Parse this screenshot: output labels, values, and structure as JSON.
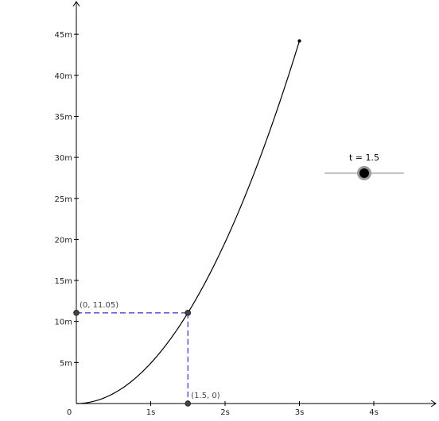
{
  "chart_data": {
    "type": "line",
    "title": "",
    "xlabel": "",
    "ylabel": "",
    "x_ticks": [
      {
        "value": 0,
        "label": "0"
      },
      {
        "value": 1,
        "label": "1s"
      },
      {
        "value": 2,
        "label": "2s"
      },
      {
        "value": 3,
        "label": "3s"
      },
      {
        "value": 4,
        "label": "4s"
      }
    ],
    "y_ticks": [
      {
        "value": 5,
        "label": "5m"
      },
      {
        "value": 10,
        "label": "10m"
      },
      {
        "value": 15,
        "label": "15m"
      },
      {
        "value": 20,
        "label": "20m"
      },
      {
        "value": 25,
        "label": "25m"
      },
      {
        "value": 30,
        "label": "30m"
      },
      {
        "value": 35,
        "label": "35m"
      },
      {
        "value": 40,
        "label": "40m"
      },
      {
        "value": 45,
        "label": "45m"
      }
    ],
    "xlim": [
      0,
      4.9
    ],
    "ylim": [
      0,
      49
    ],
    "grid": false,
    "series": [
      {
        "function": "y = 4.91 * x^2",
        "x": [
          0,
          0.25,
          0.5,
          0.75,
          1.0,
          1.25,
          1.5,
          1.75,
          2.0,
          2.25,
          2.5,
          2.75,
          3.0
        ],
        "y": [
          0,
          0.31,
          1.23,
          2.76,
          4.91,
          7.67,
          11.05,
          15.04,
          19.64,
          24.86,
          30.69,
          37.13,
          44.19
        ],
        "color": "#000000"
      }
    ],
    "points": [
      {
        "x": 1.5,
        "y": 11.05,
        "label": ""
      },
      {
        "x": 0,
        "y": 11.05,
        "label": "(0, 11.05)"
      },
      {
        "x": 1.5,
        "y": 0,
        "label": "(1.5, 0)"
      },
      {
        "x": 3.0,
        "y": 44.19,
        "label": ""
      }
    ],
    "guide_lines_color": "#3333cc",
    "slider": {
      "label": "t = 1.5",
      "value": 1.5,
      "min": 0,
      "max": 3
    }
  }
}
